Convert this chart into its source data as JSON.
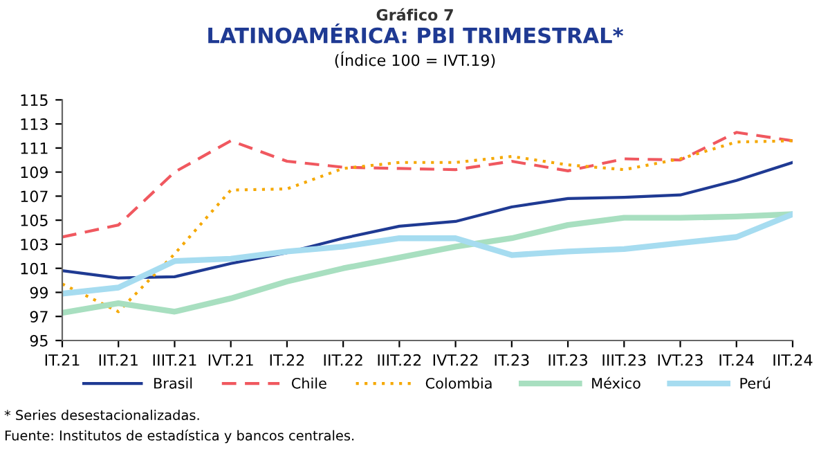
{
  "chart_data": {
    "type": "line",
    "title": "LATINOAMÉRICA: PBI TRIMESTRAL*",
    "subtitle": "(Índice 100 = IVT.19)",
    "annotations": [
      "Gráfico 7",
      "* Series desestacionalizadas.",
      "Fuente: Institutos de estadística y bancos centrales."
    ],
    "categories": [
      "IT.21",
      "IIT.21",
      "IIIT.21",
      "IVT.21",
      "IT.22",
      "IIT.22",
      "IIIT.22",
      "IVT.22",
      "IT.23",
      "IIT.23",
      "IIIT.23",
      "IVT.23",
      "IT.24",
      "IIT.24"
    ],
    "series": [
      {
        "name": "Brasil",
        "color": "#1f3a93",
        "line_style": "solid",
        "values": [
          100.8,
          100.2,
          100.3,
          101.4,
          102.3,
          103.5,
          104.5,
          104.9,
          106.1,
          106.8,
          106.9,
          107.1,
          108.3,
          109.8
        ]
      },
      {
        "name": "Chile",
        "color": "#f0585f",
        "line_style": "dashed",
        "values": [
          103.6,
          104.6,
          109.0,
          111.6,
          109.9,
          109.4,
          109.3,
          109.2,
          109.9,
          109.1,
          110.1,
          110.0,
          112.3,
          111.6
        ]
      },
      {
        "name": "Colombia",
        "color": "#f5a800",
        "line_style": "dotted",
        "values": [
          99.7,
          97.4,
          102.2,
          107.5,
          107.6,
          109.3,
          109.8,
          109.8,
          110.3,
          109.6,
          109.2,
          110.1,
          111.5,
          111.6
        ]
      },
      {
        "name": "México",
        "color": "#a8dfc0",
        "line_style": "solid",
        "values": [
          97.3,
          98.1,
          97.4,
          98.5,
          99.9,
          101.0,
          101.9,
          102.8,
          103.5,
          104.6,
          105.2,
          105.2,
          105.3,
          105.5
        ]
      },
      {
        "name": "Perú",
        "color": "#a6dcf0",
        "line_style": "solid",
        "values": [
          98.9,
          99.4,
          101.6,
          101.8,
          102.4,
          102.8,
          103.5,
          103.5,
          102.1,
          102.4,
          102.6,
          103.1,
          103.6,
          105.5
        ]
      }
    ],
    "ylim": [
      95,
      115
    ],
    "yticks": [
      95,
      97,
      99,
      101,
      103,
      105,
      107,
      109,
      111,
      113,
      115
    ],
    "grid": false,
    "legend": "bottom",
    "marker": "none"
  }
}
